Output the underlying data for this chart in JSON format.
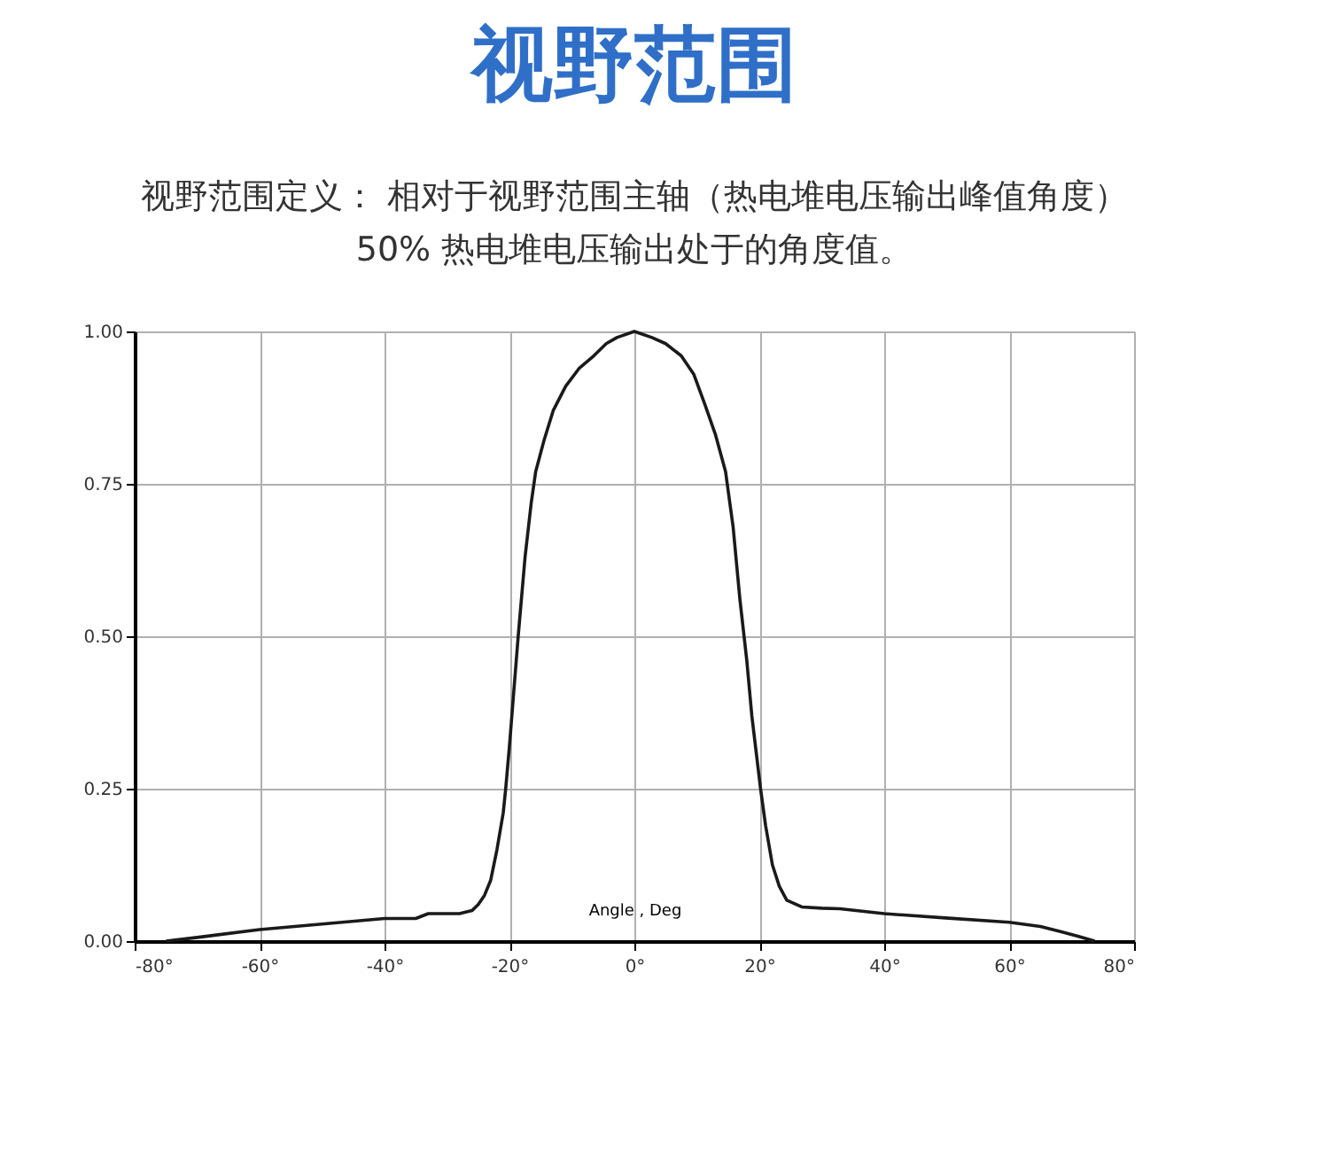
{
  "chart_data": {
    "type": "line",
    "title": "视野范围",
    "subtitle": [
      "视野范围定义： 相对于视野范围主轴（热电堆电压输出峰值角度）",
      "50% 热电堆电压输出处于的角度值。"
    ],
    "xlabel": "Angle , Deg",
    "xlim": [
      -80,
      80
    ],
    "ylim": [
      0,
      1
    ],
    "xticks": [
      {
        "value": -80,
        "label": "-80°"
      },
      {
        "value": -60,
        "label": "-60°"
      },
      {
        "value": -40,
        "label": "-40°"
      },
      {
        "value": -20,
        "label": "-20°"
      },
      {
        "value": 0,
        "label": "0°"
      },
      {
        "value": 20,
        "label": "20°"
      },
      {
        "value": 40,
        "label": "40°"
      },
      {
        "value": 60,
        "label": "60°"
      },
      {
        "value": 80,
        "label": "80°"
      }
    ],
    "yticks": [
      {
        "value": 0,
        "label": "0.00"
      },
      {
        "value": 0.25,
        "label": "0.25"
      },
      {
        "value": 0.5,
        "label": "0.50"
      },
      {
        "value": 0.75,
        "label": "0.75"
      },
      {
        "value": 1,
        "label": "1.00"
      }
    ],
    "grid": true,
    "marker": "none",
    "line_style": "solid",
    "series": [
      {
        "color": "#1a1a1a",
        "x": [
          -75,
          -70,
          -60,
          -50,
          -40,
          -35,
          -33,
          -28,
          -26,
          -25,
          -24,
          -23,
          -22,
          -21,
          -20.6,
          -20,
          -19.3,
          -18.6,
          -17.5,
          -16.5,
          -15.8,
          -14.5,
          -13,
          -11,
          -8.8,
          -6.5,
          -4.5,
          -2.8,
          0,
          2.8,
          5,
          7.5,
          9.5,
          11.3,
          13,
          14.6,
          15.8,
          16.9,
          18,
          18.8,
          19.5,
          20.2,
          21,
          22.1,
          23.2,
          24.4,
          26.8,
          30,
          32.9,
          40,
          49.8,
          60,
          65,
          68.5,
          71,
          73.7
        ],
        "values": [
          0,
          0.006,
          0.019,
          0.028,
          0.037,
          0.037,
          0.045,
          0.045,
          0.05,
          0.06,
          0.075,
          0.1,
          0.15,
          0.21,
          0.25,
          0.32,
          0.41,
          0.5,
          0.63,
          0.72,
          0.77,
          0.82,
          0.87,
          0.91,
          0.94,
          0.96,
          0.98,
          0.99,
          1,
          0.99,
          0.98,
          0.96,
          0.93,
          0.88,
          0.83,
          0.77,
          0.68,
          0.56,
          0.46,
          0.37,
          0.31,
          0.25,
          0.19,
          0.125,
          0.09,
          0.067,
          0.056,
          0.054,
          0.053,
          0.045,
          0.038,
          0.031,
          0.024,
          0.015,
          0.008,
          0
        ]
      }
    ]
  }
}
